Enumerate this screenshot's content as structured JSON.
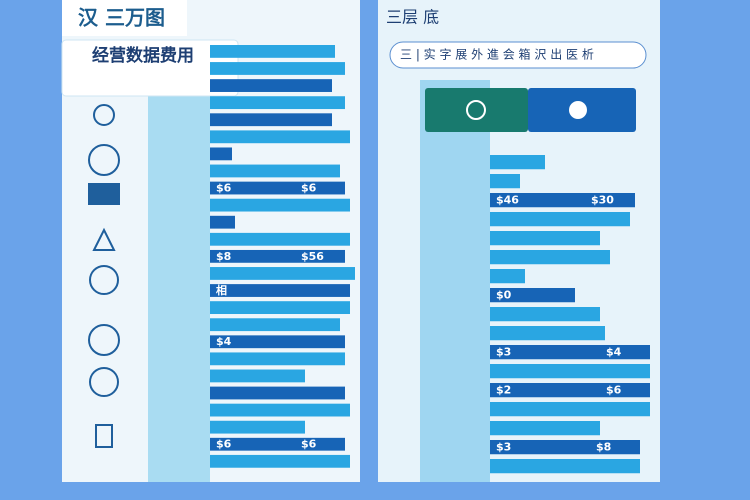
{
  "left_panel": {
    "title": "汉 三万图",
    "subtitle": "经营数据费用",
    "bars": [
      {
        "value": 125,
        "color": "#2aa6e2"
      },
      {
        "value": 135,
        "color": "#2aa6e2"
      },
      {
        "value": 122,
        "color": "#1764b6"
      },
      {
        "value": 135,
        "color": "#2aa6e2"
      },
      {
        "value": 122,
        "color": "#1764b6"
      },
      {
        "value": 140,
        "color": "#2aa6e2"
      },
      {
        "value": 22,
        "color": "#1764b6"
      },
      {
        "value": 130,
        "color": "#2aa6e2"
      },
      {
        "value": 135,
        "color": "#1764b6",
        "labels": [
          "$6",
          "$6"
        ]
      },
      {
        "value": 140,
        "color": "#2aa6e2"
      },
      {
        "value": 25,
        "color": "#1764b6"
      },
      {
        "value": 140,
        "color": "#2aa6e2"
      },
      {
        "value": 135,
        "color": "#1764b6",
        "labels": [
          "$8",
          "$56"
        ]
      },
      {
        "value": 145,
        "color": "#2aa6e2"
      },
      {
        "value": 140,
        "color": "#1764b6",
        "labels": [
          "相"
        ]
      },
      {
        "value": 140,
        "color": "#2aa6e2"
      },
      {
        "value": 130,
        "color": "#2aa6e2"
      },
      {
        "value": 135,
        "color": "#1764b6",
        "labels": [
          "$4"
        ]
      },
      {
        "value": 135,
        "color": "#2aa6e2"
      },
      {
        "value": 95,
        "color": "#2aa6e2"
      },
      {
        "value": 135,
        "color": "#1764b6"
      },
      {
        "value": 140,
        "color": "#2aa6e2"
      },
      {
        "value": 95,
        "color": "#2aa6e2"
      },
      {
        "value": 135,
        "color": "#1764b6",
        "labels": [
          "$6",
          "$6"
        ]
      },
      {
        "value": 140,
        "color": "#2aa6e2"
      }
    ]
  },
  "right_panel": {
    "title": "三层 底",
    "banner": "三 | 实 字 展 外 進 会 箱 沢 出 医 析",
    "bars": [
      {
        "value": 55,
        "color": "#2aa6e2"
      },
      {
        "value": 30,
        "color": "#2aa6e2"
      },
      {
        "value": 145,
        "color": "#1764b6",
        "labels": [
          "$46",
          "$30"
        ]
      },
      {
        "value": 140,
        "color": "#2aa6e2"
      },
      {
        "value": 110,
        "color": "#2aa6e2"
      },
      {
        "value": 120,
        "color": "#2aa6e2"
      },
      {
        "value": 35,
        "color": "#2aa6e2"
      },
      {
        "value": 85,
        "color": "#1764b6",
        "labels": [
          "$0"
        ]
      },
      {
        "value": 110,
        "color": "#2aa6e2"
      },
      {
        "value": 115,
        "color": "#2aa6e2"
      },
      {
        "value": 160,
        "color": "#1764b6",
        "labels": [
          "$3",
          "$4"
        ]
      },
      {
        "value": 160,
        "color": "#2aa6e2"
      },
      {
        "value": 160,
        "color": "#1764b6",
        "labels": [
          "$2",
          "$6"
        ]
      },
      {
        "value": 160,
        "color": "#2aa6e2"
      },
      {
        "value": 110,
        "color": "#2aa6e2"
      },
      {
        "value": 150,
        "color": "#1764b6",
        "labels": [
          "$3",
          "$8"
        ]
      },
      {
        "value": 150,
        "color": "#2aa6e2"
      }
    ]
  }
}
